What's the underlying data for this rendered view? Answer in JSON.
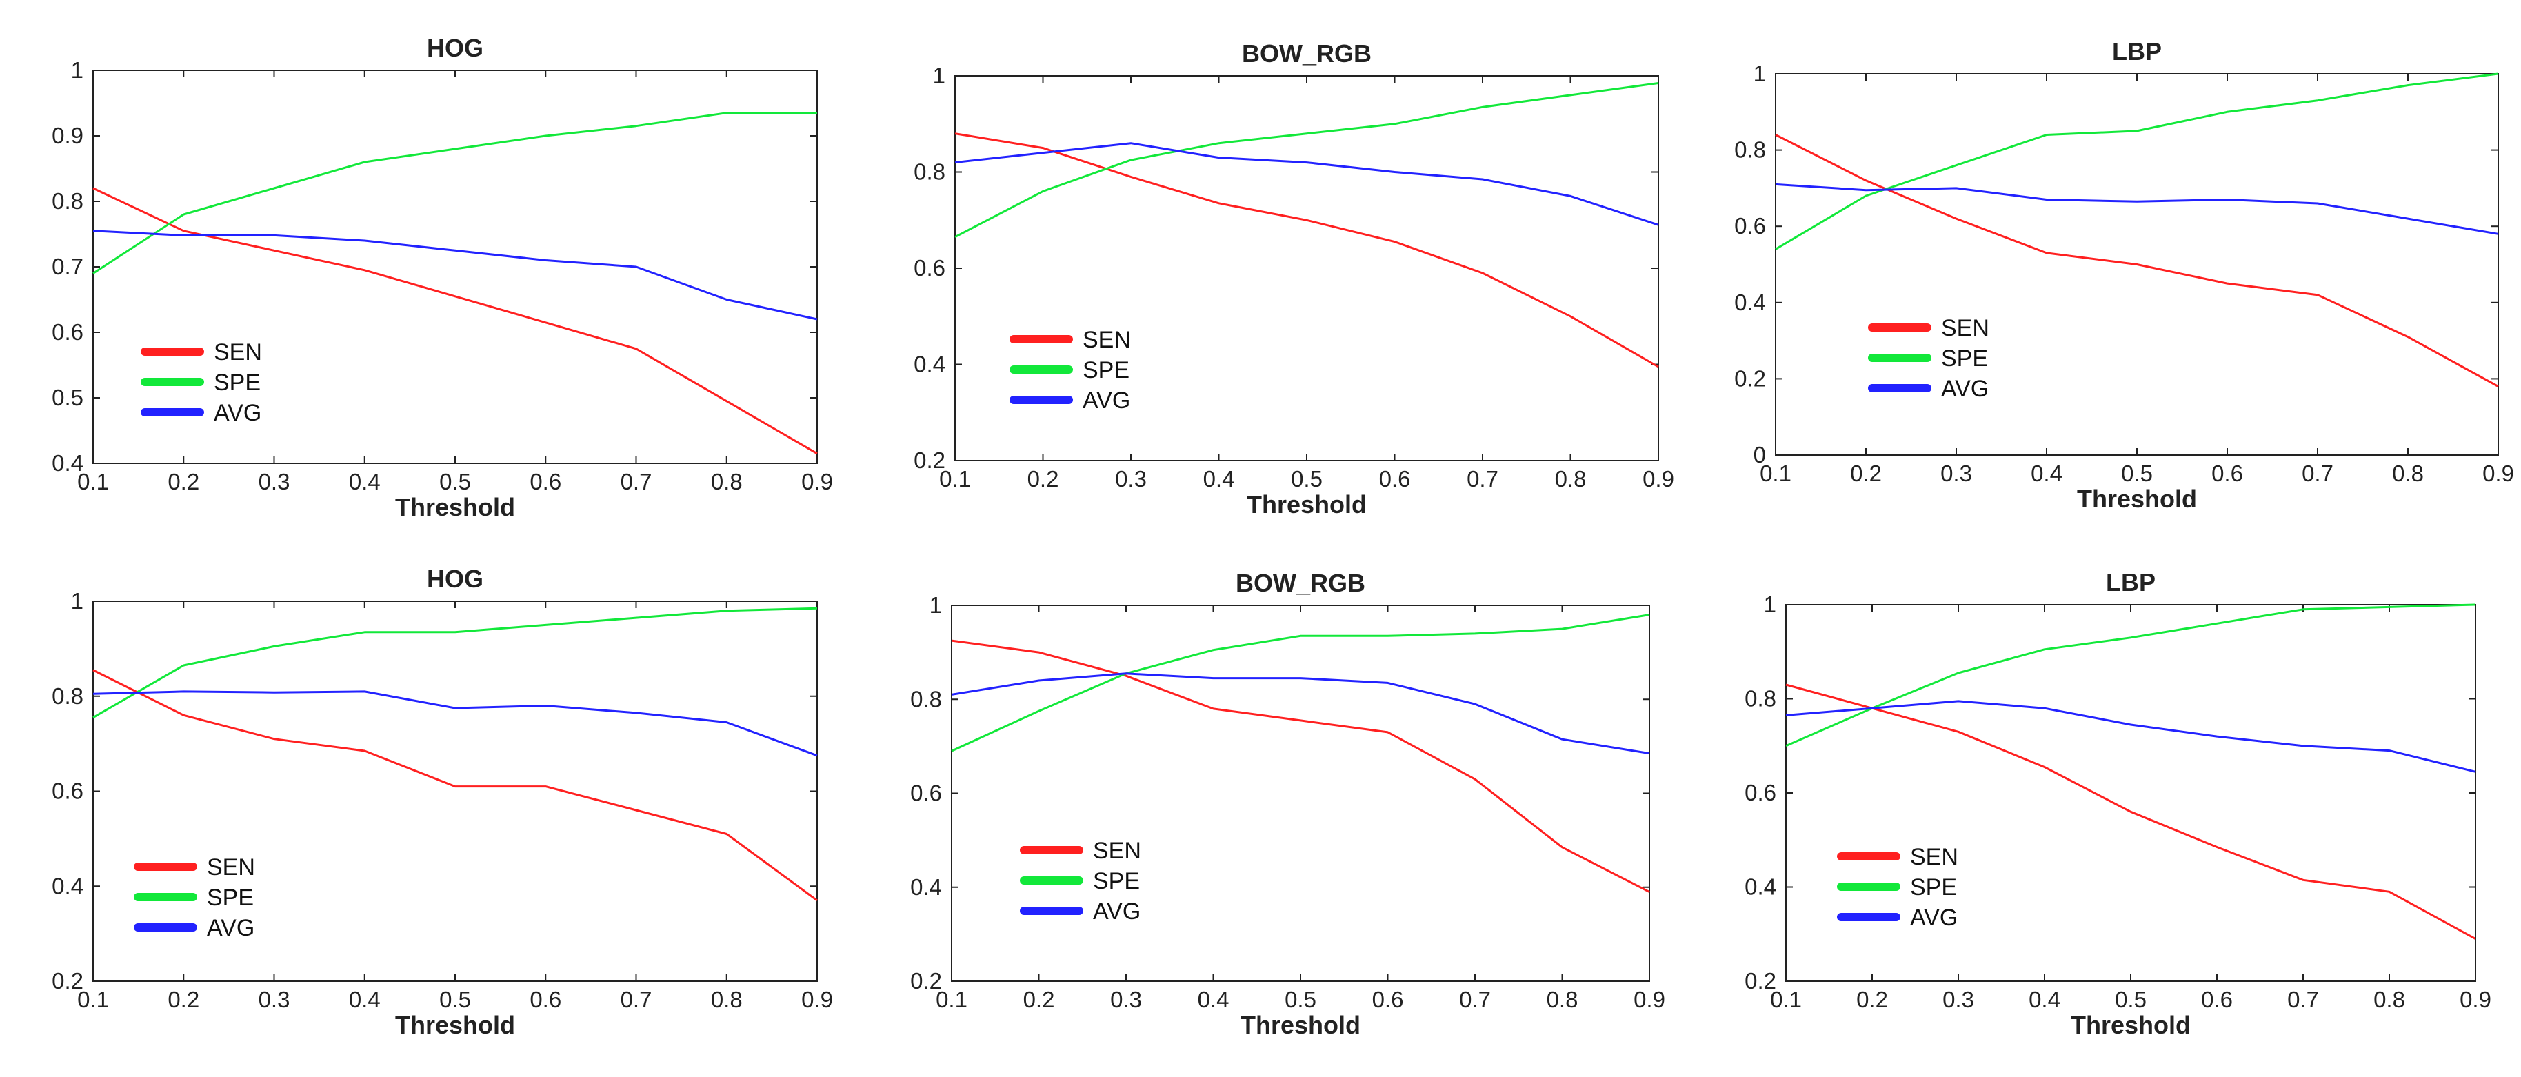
{
  "figure": {
    "description": "Sensitivity, specificity and average vs. threshold for three feature types (two rows of experiments)"
  },
  "colors": {
    "SEN": "#ff2020",
    "SPE": "#12e83a",
    "AVG": "#2222ff"
  },
  "chart_data": [
    {
      "type": "line",
      "title": "HOG",
      "xlabel": "Threshold",
      "ylabel": "",
      "x": [
        0.1,
        0.2,
        0.3,
        0.4,
        0.5,
        0.6,
        0.7,
        0.8,
        0.9
      ],
      "xlim": [
        0.1,
        0.9
      ],
      "ylim": [
        0.4,
        1
      ],
      "xticks": [
        "0.1",
        "0.2",
        "0.3",
        "0.4",
        "0.5",
        "0.6",
        "0.7",
        "0.8",
        "0.9"
      ],
      "yticks": [
        "0.4",
        "0.5",
        "0.6",
        "0.7",
        "0.8",
        "0.9",
        "1"
      ],
      "yticks_values": [
        0.4,
        0.5,
        0.6,
        0.7,
        0.8,
        0.9,
        1.0
      ],
      "legend": [
        "SEN",
        "SPE",
        "AVG"
      ],
      "series": [
        {
          "name": "SEN",
          "values": [
            0.82,
            0.755,
            0.725,
            0.695,
            0.655,
            0.615,
            0.575,
            0.495,
            0.415
          ]
        },
        {
          "name": "SPE",
          "values": [
            0.69,
            0.78,
            0.82,
            0.86,
            0.88,
            0.9,
            0.915,
            0.935,
            0.935
          ]
        },
        {
          "name": "AVG",
          "values": [
            0.755,
            0.748,
            0.748,
            0.74,
            0.725,
            0.71,
            0.7,
            0.65,
            0.62
          ]
        }
      ]
    },
    {
      "type": "line",
      "title": "BOW_RGB",
      "xlabel": "Threshold",
      "ylabel": "",
      "x": [
        0.1,
        0.2,
        0.3,
        0.4,
        0.5,
        0.6,
        0.7,
        0.8,
        0.9
      ],
      "xlim": [
        0.1,
        0.9
      ],
      "ylim": [
        0.2,
        1
      ],
      "xticks": [
        "0.1",
        "0.2",
        "0.3",
        "0.4",
        "0.5",
        "0.6",
        "0.7",
        "0.8",
        "0.9"
      ],
      "yticks": [
        "0.2",
        "0.4",
        "0.6",
        "0.8",
        "1"
      ],
      "yticks_values": [
        0.2,
        0.4,
        0.6,
        0.8,
        1.0
      ],
      "legend": [
        "SEN",
        "SPE",
        "AVG"
      ],
      "series": [
        {
          "name": "SEN",
          "values": [
            0.88,
            0.85,
            0.79,
            0.735,
            0.7,
            0.655,
            0.59,
            0.5,
            0.395
          ]
        },
        {
          "name": "SPE",
          "values": [
            0.665,
            0.76,
            0.825,
            0.86,
            0.88,
            0.9,
            0.935,
            0.96,
            0.985
          ]
        },
        {
          "name": "AVG",
          "values": [
            0.82,
            0.84,
            0.86,
            0.83,
            0.82,
            0.8,
            0.785,
            0.75,
            0.69
          ]
        }
      ]
    },
    {
      "type": "line",
      "title": "LBP",
      "xlabel": "Threshold",
      "ylabel": "",
      "x": [
        0.1,
        0.2,
        0.3,
        0.4,
        0.5,
        0.6,
        0.7,
        0.8,
        0.9
      ],
      "xlim": [
        0.1,
        0.9
      ],
      "ylim": [
        0,
        1
      ],
      "xticks": [
        "0.1",
        "0.2",
        "0.3",
        "0.4",
        "0.5",
        "0.6",
        "0.7",
        "0.8",
        "0.9"
      ],
      "yticks": [
        "0",
        "0.2",
        "0.4",
        "0.6",
        "0.8",
        "1"
      ],
      "yticks_values": [
        0,
        0.2,
        0.4,
        0.6,
        0.8,
        1.0
      ],
      "legend": [
        "SEN",
        "SPE",
        "AVG"
      ],
      "series": [
        {
          "name": "SEN",
          "values": [
            0.84,
            0.72,
            0.62,
            0.53,
            0.5,
            0.45,
            0.42,
            0.31,
            0.18
          ]
        },
        {
          "name": "SPE",
          "values": [
            0.54,
            0.68,
            0.76,
            0.84,
            0.85,
            0.9,
            0.93,
            0.97,
            1.0
          ]
        },
        {
          "name": "AVG",
          "values": [
            0.71,
            0.695,
            0.7,
            0.67,
            0.665,
            0.67,
            0.66,
            0.62,
            0.58
          ]
        }
      ]
    },
    {
      "type": "line",
      "title": "HOG",
      "xlabel": "Threshold",
      "ylabel": "",
      "x": [
        0.1,
        0.2,
        0.3,
        0.4,
        0.5,
        0.6,
        0.7,
        0.8,
        0.9
      ],
      "xlim": [
        0.1,
        0.9
      ],
      "ylim": [
        0.2,
        1
      ],
      "xticks": [
        "0.1",
        "0.2",
        "0.3",
        "0.4",
        "0.5",
        "0.6",
        "0.7",
        "0.8",
        "0.9"
      ],
      "yticks": [
        "0.2",
        "0.4",
        "0.6",
        "0.8",
        "1"
      ],
      "yticks_values": [
        0.2,
        0.4,
        0.6,
        0.8,
        1.0
      ],
      "legend": [
        "SEN",
        "SPE",
        "AVG"
      ],
      "series": [
        {
          "name": "SEN",
          "values": [
            0.855,
            0.76,
            0.71,
            0.685,
            0.61,
            0.61,
            0.56,
            0.51,
            0.37
          ]
        },
        {
          "name": "SPE",
          "values": [
            0.755,
            0.865,
            0.905,
            0.935,
            0.935,
            0.95,
            0.965,
            0.98,
            0.985
          ]
        },
        {
          "name": "AVG",
          "values": [
            0.805,
            0.81,
            0.808,
            0.81,
            0.775,
            0.78,
            0.765,
            0.745,
            0.675
          ]
        }
      ]
    },
    {
      "type": "line",
      "title": "BOW_RGB",
      "xlabel": "Threshold",
      "ylabel": "",
      "x": [
        0.1,
        0.2,
        0.3,
        0.4,
        0.5,
        0.6,
        0.7,
        0.8,
        0.9
      ],
      "xlim": [
        0.1,
        0.9
      ],
      "ylim": [
        0.2,
        1
      ],
      "xticks": [
        "0.1",
        "0.2",
        "0.3",
        "0.4",
        "0.5",
        "0.6",
        "0.7",
        "0.8",
        "0.9"
      ],
      "yticks": [
        "0.2",
        "0.4",
        "0.6",
        "0.8",
        "1"
      ],
      "yticks_values": [
        0.2,
        0.4,
        0.6,
        0.8,
        1.0
      ],
      "legend": [
        "SEN",
        "SPE",
        "AVG"
      ],
      "series": [
        {
          "name": "SEN",
          "values": [
            0.925,
            0.9,
            0.85,
            0.78,
            0.755,
            0.73,
            0.63,
            0.485,
            0.39
          ]
        },
        {
          "name": "SPE",
          "values": [
            0.69,
            0.775,
            0.855,
            0.905,
            0.935,
            0.935,
            0.94,
            0.95,
            0.98
          ]
        },
        {
          "name": "AVG",
          "values": [
            0.81,
            0.84,
            0.855,
            0.845,
            0.845,
            0.835,
            0.79,
            0.715,
            0.685
          ]
        }
      ]
    },
    {
      "type": "line",
      "title": "LBP",
      "xlabel": "Threshold",
      "ylabel": "",
      "x": [
        0.1,
        0.2,
        0.3,
        0.4,
        0.5,
        0.6,
        0.7,
        0.8,
        0.9
      ],
      "xlim": [
        0.1,
        0.9
      ],
      "ylim": [
        0.2,
        1
      ],
      "xticks": [
        "0.1",
        "0.2",
        "0.3",
        "0.4",
        "0.5",
        "0.6",
        "0.7",
        "0.8",
        "0.9"
      ],
      "yticks": [
        "0.2",
        "0.4",
        "0.6",
        "0.8",
        "1"
      ],
      "yticks_values": [
        0.2,
        0.4,
        0.6,
        0.8,
        1.0
      ],
      "legend": [
        "SEN",
        "SPE",
        "AVG"
      ],
      "series": [
        {
          "name": "SEN",
          "values": [
            0.83,
            0.78,
            0.73,
            0.655,
            0.56,
            0.485,
            0.415,
            0.39,
            0.29
          ]
        },
        {
          "name": "SPE",
          "values": [
            0.7,
            0.78,
            0.855,
            0.905,
            0.93,
            0.96,
            0.99,
            0.995,
            1.0
          ]
        },
        {
          "name": "AVG",
          "values": [
            0.765,
            0.78,
            0.795,
            0.78,
            0.745,
            0.72,
            0.7,
            0.69,
            0.645
          ]
        }
      ]
    }
  ]
}
